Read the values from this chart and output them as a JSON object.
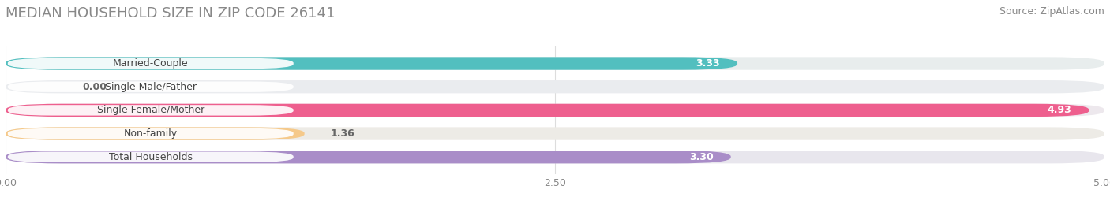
{
  "title": "MEDIAN HOUSEHOLD SIZE IN ZIP CODE 26141",
  "source": "Source: ZipAtlas.com",
  "categories": [
    "Married-Couple",
    "Single Male/Father",
    "Single Female/Mother",
    "Non-family",
    "Total Households"
  ],
  "values": [
    3.33,
    0.0,
    4.93,
    1.36,
    3.3
  ],
  "bar_colors": [
    "#52BFBF",
    "#A0BEDD",
    "#EE5F8E",
    "#F5C98A",
    "#A98DC8"
  ],
  "bar_bg_colors": [
    "#E8EDED",
    "#EAECEF",
    "#EDE8ED",
    "#EDEBE6",
    "#E8E6ED"
  ],
  "value_colors": [
    "white",
    "#888888",
    "white",
    "#888888",
    "white"
  ],
  "xlim": [
    0,
    5.0
  ],
  "xticks": [
    0.0,
    2.5,
    5.0
  ],
  "xtick_labels": [
    "0.00",
    "2.50",
    "5.00"
  ],
  "title_fontsize": 13,
  "source_fontsize": 9,
  "label_fontsize": 9,
  "value_fontsize": 9,
  "background_color": "#ffffff"
}
